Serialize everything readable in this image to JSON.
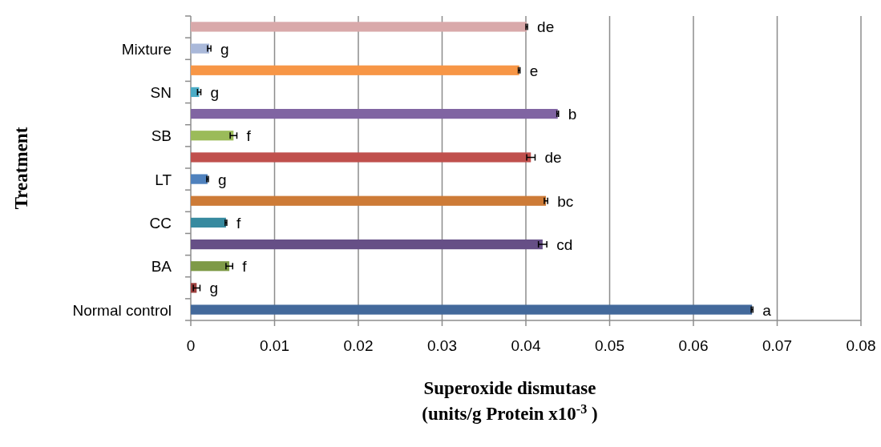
{
  "chart_data": {
    "type": "bar",
    "orientation": "horizontal",
    "xlabel": "Superoxide dismutase\n(units/g Protein x10$^{-3}$ )",
    "ylabel": "Treatment",
    "categories": [
      null,
      "Mixture",
      null,
      "SN",
      null,
      "SB",
      null,
      "LT",
      null,
      "CC",
      null,
      "BA",
      null,
      "Normal control"
    ],
    "values": [
      0.0401,
      0.0022,
      0.0392,
      0.001,
      0.0438,
      0.0051,
      0.0406,
      0.002,
      0.0424,
      0.0042,
      0.042,
      0.0046,
      0.0007,
      0.067
    ],
    "errors": [
      0.0001,
      0.0002,
      0.0001,
      0.0002,
      0.0001,
      0.0004,
      0.0005,
      0.0001,
      0.0002,
      0.0001,
      0.0005,
      0.0004,
      0.0004,
      0.0001
    ],
    "colors": [
      "#d9a9aa",
      "#a9b8d9",
      "#f79646",
      "#4bacc6",
      "#8064a2",
      "#9bbb59",
      "#c0504d",
      "#4f81bd",
      "#cd7b37",
      "#378a9f",
      "#664f86",
      "#7e9a47",
      "#9e413f",
      "#43699b"
    ],
    "value_labels": [
      "de",
      "g",
      "e",
      "g",
      "b",
      "f",
      "de",
      "g",
      "bc",
      "f",
      "cd",
      "f",
      "g",
      "a"
    ],
    "xlim": [
      0,
      0.08
    ],
    "xticks": [
      0,
      0.01,
      0.02,
      0.03,
      0.04,
      0.05,
      0.06,
      0.07,
      0.08
    ],
    "grid": "x"
  }
}
